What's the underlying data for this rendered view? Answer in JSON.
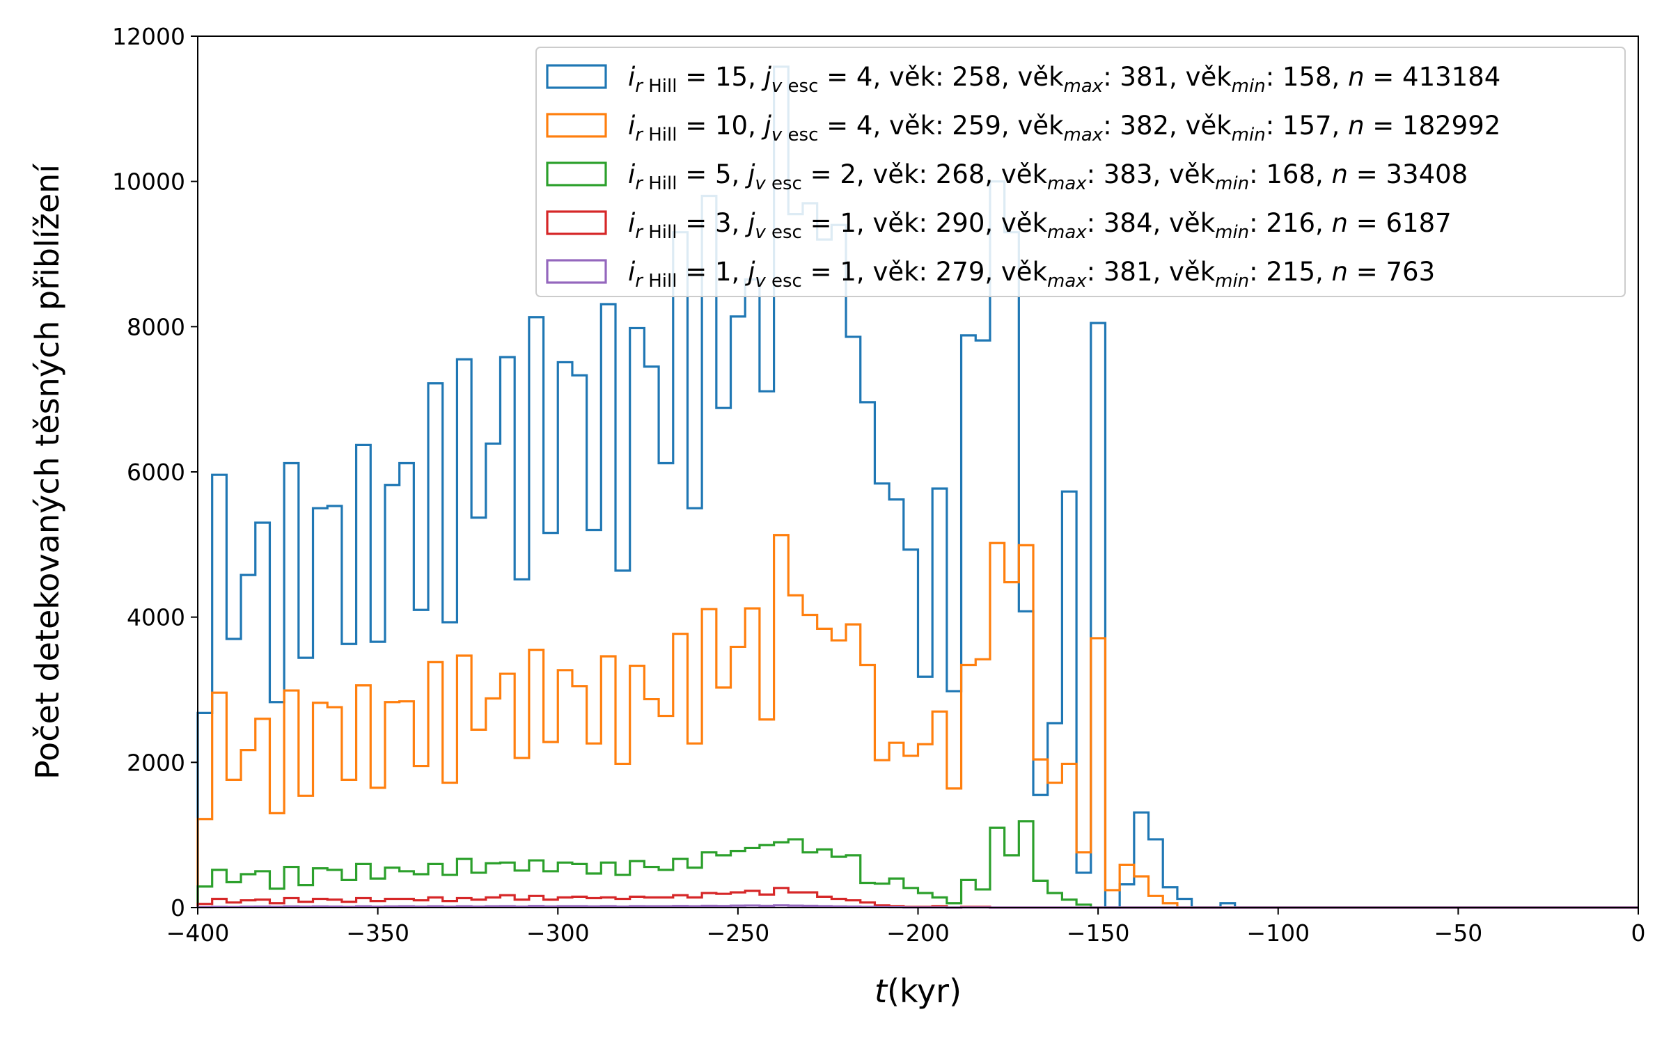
{
  "chart_data": {
    "type": "histogram",
    "xlabel_var": "t",
    "xlabel_unit": "(kyr)",
    "ylabel": "Počet detekovaných těsných přiblížení",
    "xlim": [
      -400,
      0
    ],
    "ylim": [
      0,
      12000
    ],
    "x_ticks": [
      -400,
      -350,
      -300,
      -250,
      -200,
      -150,
      -100,
      -50,
      0
    ],
    "x_tick_labels": [
      "−400",
      "−350",
      "−300",
      "−250",
      "−200",
      "−150",
      "−100",
      "−50",
      "0"
    ],
    "y_ticks": [
      0,
      2000,
      4000,
      6000,
      8000,
      10000,
      12000
    ],
    "y_tick_labels": [
      "0",
      "2000",
      "4000",
      "6000",
      "8000",
      "10000",
      "12000"
    ],
    "grid": false,
    "legend_position": "upper-right",
    "bin_start": -400,
    "bin_width": 4,
    "series": [
      {
        "color": "#1f77b4",
        "legend": {
          "i_val": " = 15,",
          "j_val": " = 4, věk: 258, věk",
          "max_val": ": 381, věk",
          "min_val": ": 158, ",
          "n_val": " = 413184"
        },
        "values": [
          2680,
          5960,
          3700,
          4580,
          5300,
          2830,
          6120,
          3440,
          5500,
          5530,
          3630,
          6370,
          3660,
          5820,
          6120,
          4100,
          7220,
          3930,
          7550,
          5370,
          6390,
          7580,
          4520,
          8130,
          5160,
          7510,
          7330,
          5200,
          8310,
          4640,
          7980,
          7450,
          6120,
          9300,
          5500,
          9800,
          6880,
          8140,
          8650,
          7110,
          11580,
          9550,
          9700,
          9200,
          9400,
          7860,
          6960,
          5840,
          5620,
          4930,
          3180,
          5770,
          2980,
          7880,
          7810,
          10000,
          9300,
          4080,
          1550,
          2540,
          5730,
          480,
          8050,
          0,
          320,
          1310,
          940,
          280,
          120,
          0,
          0,
          60,
          0,
          0,
          0,
          0,
          0,
          0,
          0,
          0,
          0,
          0,
          0,
          0,
          0,
          0,
          0,
          0,
          0,
          0,
          0,
          0,
          0,
          0,
          0,
          0,
          0,
          0,
          0,
          0
        ]
      },
      {
        "color": "#ff7f0e",
        "legend": {
          "i_val": " = 10,",
          "j_val": " = 4, věk: 259, věk",
          "max_val": ": 382, věk",
          "min_val": ": 157, ",
          "n_val": " = 182992"
        },
        "values": [
          1220,
          2960,
          1760,
          2170,
          2600,
          1300,
          2990,
          1540,
          2820,
          2760,
          1760,
          3060,
          1650,
          2830,
          2840,
          1950,
          3380,
          1720,
          3470,
          2450,
          2880,
          3220,
          2060,
          3550,
          2280,
          3270,
          3050,
          2260,
          3460,
          1980,
          3330,
          2870,
          2640,
          3770,
          2260,
          4110,
          3030,
          3590,
          4120,
          2590,
          5130,
          4300,
          4030,
          3840,
          3680,
          3900,
          3340,
          2030,
          2270,
          2090,
          2250,
          2700,
          1640,
          3340,
          3420,
          5020,
          4480,
          4990,
          2040,
          1720,
          1980,
          760,
          3710,
          240,
          590,
          430,
          160,
          60,
          0,
          0,
          0,
          0,
          0,
          0,
          0,
          0,
          0,
          0,
          0,
          0,
          0,
          0,
          0,
          0,
          0,
          0,
          0,
          0,
          0,
          0,
          0,
          0,
          0,
          0,
          0,
          0,
          0,
          0,
          0,
          0
        ]
      },
      {
        "color": "#2ca02c",
        "legend": {
          "i_val": " =  5,",
          "j_val": " = 2, věk: 268, věk",
          "max_val": ": 383, věk",
          "min_val": ": 168, ",
          "n_val": " = 33408"
        },
        "values": [
          290,
          520,
          350,
          460,
          500,
          260,
          560,
          310,
          540,
          520,
          380,
          600,
          400,
          550,
          500,
          460,
          600,
          450,
          670,
          480,
          610,
          620,
          510,
          650,
          500,
          620,
          600,
          470,
          620,
          450,
          640,
          560,
          520,
          670,
          550,
          760,
          720,
          780,
          820,
          860,
          900,
          940,
          760,
          800,
          700,
          720,
          340,
          330,
          400,
          270,
          200,
          140,
          60,
          380,
          250,
          1100,
          720,
          1190,
          370,
          200,
          110,
          40,
          0,
          0,
          0,
          0,
          0,
          0,
          0,
          0,
          0,
          0,
          0,
          0,
          0,
          0,
          0,
          0,
          0,
          0,
          0,
          0,
          0,
          0,
          0,
          0,
          0,
          0,
          0,
          0,
          0,
          0,
          0,
          0,
          0,
          0,
          0,
          0,
          0,
          0
        ]
      },
      {
        "color": "#d62728",
        "legend": {
          "i_val": " =  3,",
          "j_val": " = 1, věk: 290, věk",
          "max_val": ": 384, věk",
          "min_val": ": 216, ",
          "n_val": " = 6187"
        },
        "values": [
          50,
          120,
          70,
          100,
          110,
          60,
          130,
          80,
          120,
          110,
          80,
          130,
          90,
          120,
          120,
          100,
          140,
          90,
          130,
          110,
          140,
          170,
          110,
          160,
          110,
          140,
          150,
          130,
          140,
          120,
          150,
          140,
          140,
          170,
          140,
          200,
          190,
          210,
          230,
          180,
          270,
          210,
          210,
          150,
          120,
          100,
          70,
          30,
          20,
          10,
          10,
          20,
          0,
          10,
          10,
          0,
          0,
          0,
          0,
          0,
          0,
          0,
          0,
          0,
          0,
          0,
          0,
          0,
          0,
          0,
          0,
          0,
          0,
          0,
          0,
          0,
          0,
          0,
          0,
          0,
          0,
          0,
          0,
          0,
          0,
          0,
          0,
          0,
          0,
          0,
          0,
          0,
          0,
          0,
          0,
          0,
          0,
          0,
          0,
          0
        ]
      },
      {
        "color": "#9467bd",
        "legend": {
          "i_val": " =  1,",
          "j_val": " = 1, věk: 279, věk",
          "max_val": ": 381, věk",
          "min_val": ": 215, ",
          "n_val": " = 763"
        },
        "values": [
          5,
          10,
          8,
          12,
          14,
          10,
          16,
          12,
          16,
          14,
          10,
          18,
          12,
          16,
          18,
          14,
          18,
          12,
          18,
          14,
          18,
          20,
          14,
          22,
          16,
          20,
          20,
          16,
          20,
          14,
          20,
          18,
          18,
          22,
          18,
          24,
          22,
          26,
          28,
          24,
          30,
          26,
          24,
          20,
          16,
          14,
          10,
          6,
          4,
          2,
          2,
          2,
          0,
          2,
          2,
          0,
          0,
          0,
          0,
          0,
          0,
          0,
          0,
          0,
          0,
          0,
          0,
          0,
          0,
          0,
          0,
          0,
          0,
          0,
          0,
          0,
          0,
          0,
          0,
          0,
          0,
          0,
          0,
          0,
          0,
          0,
          0,
          0,
          0,
          0,
          0,
          0,
          0,
          0,
          0,
          0,
          0,
          0,
          0,
          0
        ]
      }
    ],
    "legend_tokens": {
      "i_sym": "i",
      "r_sub": "r",
      "hill_sub": " Hill",
      "j_sym": "j",
      "v_sub": "v",
      "esc_sub": " esc",
      "max_sub": "max",
      "min_sub": "min",
      "n_sym": "n"
    }
  }
}
